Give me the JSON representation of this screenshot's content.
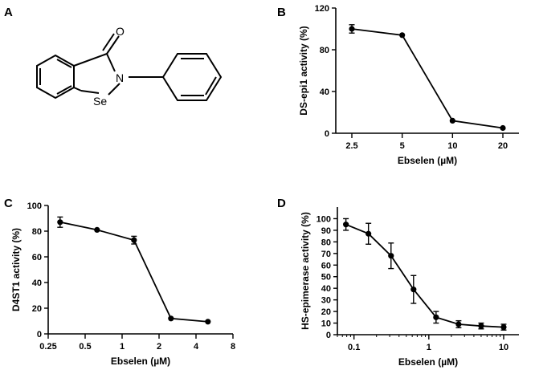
{
  "panels": {
    "A": "A",
    "B": "B",
    "C": "C",
    "D": "D"
  },
  "molecule": {
    "atoms": {
      "oxygen": "O",
      "nitrogen": "N",
      "selenium": "Se"
    }
  },
  "chart_data": [
    {
      "id": "B",
      "type": "line",
      "ylabel": "DS-epi1 activity (%)",
      "xlabel": "Ebselen (µM)",
      "x_scale": "log2",
      "x_ticks": [
        2.5,
        5,
        10,
        20
      ],
      "x_tick_labels": [
        "2.5",
        "5",
        "10",
        "20"
      ],
      "ylim": [
        0,
        120
      ],
      "y_ticks": [
        0,
        40,
        80,
        120
      ],
      "series": [
        {
          "x": [
            2.5,
            5,
            10,
            20
          ],
          "y": [
            100,
            94,
            12,
            5
          ],
          "err": [
            4,
            0,
            0,
            0
          ]
        }
      ]
    },
    {
      "id": "C",
      "type": "line",
      "ylabel": "D4ST1 activity (%)",
      "xlabel": "Ebselen (µM)",
      "x_scale": "log2",
      "x_ticks": [
        0.25,
        0.5,
        1,
        2,
        4,
        8
      ],
      "x_tick_labels": [
        "0.25",
        "0.5",
        "1",
        "2",
        "4",
        "8"
      ],
      "ylim": [
        0,
        100
      ],
      "y_ticks": [
        0,
        20,
        40,
        60,
        80,
        100
      ],
      "series": [
        {
          "x": [
            0.3125,
            0.625,
            1.25,
            2.5,
            5
          ],
          "y": [
            87,
            81,
            73,
            12,
            9.5
          ],
          "err": [
            4,
            0,
            3,
            0,
            0
          ]
        }
      ]
    },
    {
      "id": "D",
      "type": "line",
      "ylabel": "HS-epimerase activity (%)",
      "xlabel": "Ebselen (µM)",
      "x_scale": "log10",
      "xlim": [
        0.06,
        16
      ],
      "x_ticks": [
        0.1,
        1,
        10
      ],
      "x_tick_labels": [
        "0.1",
        "1",
        "10"
      ],
      "ylim": [
        0,
        110
      ],
      "y_ticks": [
        0,
        10,
        20,
        30,
        40,
        50,
        60,
        70,
        80,
        90,
        100
      ],
      "series": [
        {
          "x": [
            0.078,
            0.156,
            0.3125,
            0.625,
            1.25,
            2.5,
            5,
            10
          ],
          "y": [
            95,
            87,
            68,
            39,
            15,
            9,
            7.5,
            6.5
          ],
          "err": [
            5,
            9,
            11,
            12,
            5,
            3,
            2.5,
            2.5
          ]
        }
      ]
    }
  ]
}
